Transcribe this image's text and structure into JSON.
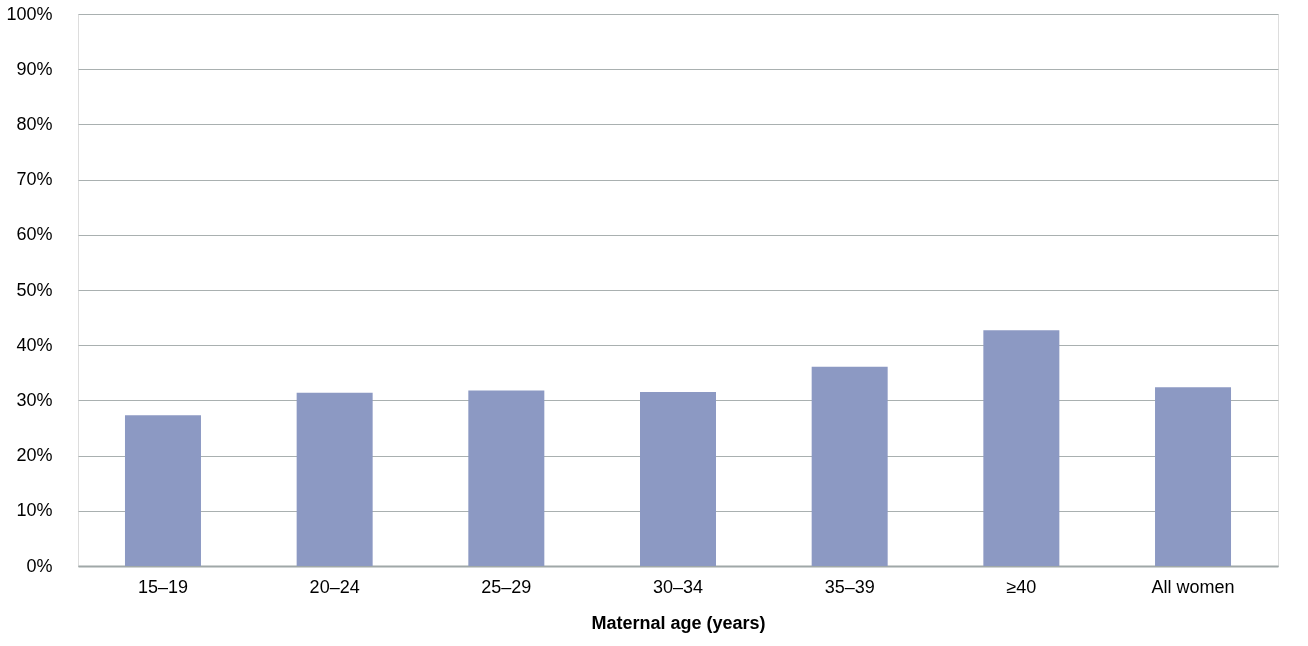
{
  "chart_data": {
    "type": "bar",
    "xlabel": "Maternal age (years)",
    "categories": [
      "15–19",
      "20–24",
      "25–29",
      "30–34",
      "35–39",
      "≥40",
      "All women"
    ],
    "series": [
      {
        "color": "#8c99c3",
        "values": [
          27.3,
          31.4,
          31.8,
          31.5,
          36.1,
          42.7,
          32.4
        ]
      }
    ],
    "ylim": [
      0,
      100
    ],
    "yticks": [
      {
        "value": 0,
        "label": "0%"
      },
      {
        "value": 10,
        "label": "10%"
      },
      {
        "value": 20,
        "label": "20%"
      },
      {
        "value": 30,
        "label": "30%"
      },
      {
        "value": 40,
        "label": "40%"
      },
      {
        "value": 50,
        "label": "50%"
      },
      {
        "value": 60,
        "label": "60%"
      },
      {
        "value": 70,
        "label": "70%"
      },
      {
        "value": 80,
        "label": "80%"
      },
      {
        "value": 90,
        "label": "90%"
      },
      {
        "value": 100,
        "label": "100%"
      }
    ],
    "grid": "y"
  }
}
